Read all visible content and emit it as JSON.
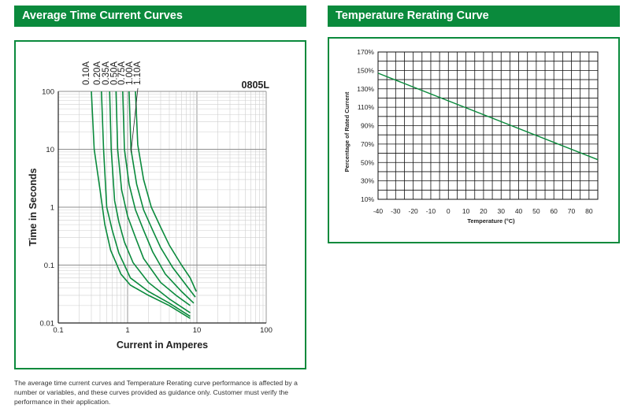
{
  "left_header": "Average Time Current Curves",
  "right_header": "Temperature Rerating Curve",
  "note": "The average time current curves and Temperature Rerating curve performance is affected by a number or variables, and these curves provided as guidance only. Customer must verify the performance in their application.",
  "colors": {
    "brand": "#0a8a3c",
    "curve": "#0a8a3c"
  },
  "chart_data": [
    {
      "type": "line",
      "title": "0805L",
      "xlabel": "Current in Amperes",
      "ylabel": "Time in Seconds",
      "xscale": "log",
      "yscale": "log",
      "xlim": [
        0.1,
        100
      ],
      "ylim": [
        0.01,
        100
      ],
      "xticks": [
        "0.1",
        "1",
        "10",
        "100"
      ],
      "yticks": [
        "0.01",
        "0.1",
        "1",
        "10",
        "100"
      ],
      "grid": true,
      "series": [
        {
          "name": "0.10A",
          "points": [
            [
              0.3,
              100
            ],
            [
              0.33,
              10
            ],
            [
              0.4,
              2
            ],
            [
              0.47,
              0.5
            ],
            [
              0.57,
              0.18
            ],
            [
              0.8,
              0.07
            ],
            [
              1.1,
              0.045
            ],
            [
              2,
              0.03
            ],
            [
              4,
              0.02
            ],
            [
              8,
              0.012
            ]
          ]
        },
        {
          "name": "0.20A",
          "points": [
            [
              0.42,
              100
            ],
            [
              0.45,
              10
            ],
            [
              0.5,
              1
            ],
            [
              0.6,
              0.4
            ],
            [
              0.75,
              0.16
            ],
            [
              1.1,
              0.06
            ],
            [
              2,
              0.035
            ],
            [
              4,
              0.022
            ],
            [
              8,
              0.013
            ]
          ]
        },
        {
          "name": "0.35A",
          "points": [
            [
              0.55,
              100
            ],
            [
              0.58,
              10
            ],
            [
              0.65,
              1.3
            ],
            [
              0.75,
              0.55
            ],
            [
              0.9,
              0.25
            ],
            [
              1.2,
              0.11
            ],
            [
              2,
              0.05
            ],
            [
              4,
              0.026
            ],
            [
              8,
              0.015
            ]
          ]
        },
        {
          "name": "0.50A",
          "points": [
            [
              0.68,
              100
            ],
            [
              0.72,
              10
            ],
            [
              0.82,
              2
            ],
            [
              1,
              0.7
            ],
            [
              1.3,
              0.3
            ],
            [
              1.7,
              0.13
            ],
            [
              3,
              0.05
            ],
            [
              5,
              0.03
            ],
            [
              8,
              0.02
            ]
          ]
        },
        {
          "name": "0.75A",
          "points": [
            [
              0.85,
              100
            ],
            [
              0.9,
              10
            ],
            [
              1.05,
              2.5
            ],
            [
              1.3,
              0.9
            ],
            [
              1.7,
              0.4
            ],
            [
              2.3,
              0.17
            ],
            [
              3.5,
              0.07
            ],
            [
              6,
              0.035
            ],
            [
              9,
              0.022
            ]
          ]
        },
        {
          "name": "1.00A",
          "points": [
            [
              1.05,
              100
            ],
            [
              1.12,
              10
            ],
            [
              1.35,
              2.5
            ],
            [
              1.7,
              0.9
            ],
            [
              2.3,
              0.4
            ],
            [
              3,
              0.2
            ],
            [
              4.5,
              0.09
            ],
            [
              7,
              0.045
            ],
            [
              9.5,
              0.028
            ]
          ]
        },
        {
          "name": "1.10A",
          "points": [
            [
              1.3,
              100
            ],
            [
              1.4,
              12
            ],
            [
              1.7,
              3
            ],
            [
              2.2,
              1
            ],
            [
              3,
              0.45
            ],
            [
              4,
              0.22
            ],
            [
              6,
              0.1
            ],
            [
              8,
              0.06
            ],
            [
              9.8,
              0.035
            ]
          ]
        }
      ]
    },
    {
      "type": "line",
      "title": "",
      "xlabel": "Temperature (°C)",
      "ylabel": "Percentage of Rated Current",
      "xlim": [
        -40,
        85
      ],
      "ylim": [
        10,
        170
      ],
      "xticks": [
        -40,
        -30,
        -20,
        -10,
        0,
        10,
        20,
        30,
        40,
        50,
        60,
        70,
        80
      ],
      "yticks": [
        10,
        30,
        50,
        70,
        90,
        110,
        130,
        150,
        170
      ],
      "grid": true,
      "series": [
        {
          "name": "",
          "x": [
            -40,
            85
          ],
          "y": [
            147,
            53
          ]
        }
      ]
    }
  ]
}
